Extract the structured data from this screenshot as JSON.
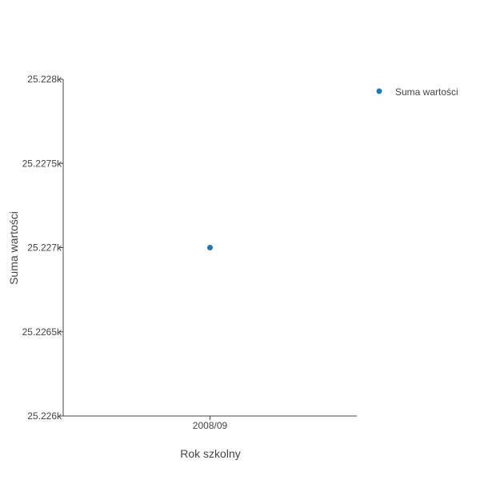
{
  "chart_data": {
    "type": "scatter",
    "xlabel": "Rok szkolny",
    "ylabel": "Suma wartości",
    "categories": [
      "2008/09"
    ],
    "series": [
      {
        "name": "Suma wartości",
        "x": [
          "2008/09"
        ],
        "values": [
          25227
        ]
      }
    ],
    "ylim": [
      25226,
      25228
    ],
    "yticks": [
      25226,
      25226.5,
      25227,
      25227.5,
      25228
    ],
    "ytick_labels": [
      "25.226k",
      "25.2265k",
      "25.227k",
      "25.2275k",
      "25.228k"
    ],
    "grid": false,
    "legend_position": "top-right",
    "colors": {
      "series": "#1f77b4",
      "axis": "#444444",
      "text": "#444444"
    }
  }
}
